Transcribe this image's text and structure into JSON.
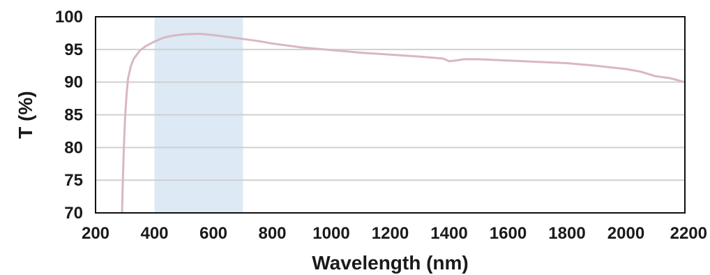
{
  "chart_data": {
    "type": "line",
    "xlabel": "Wavelength (nm)",
    "ylabel": "T (%)",
    "xlim": [
      200,
      2200
    ],
    "ylim": [
      70,
      100
    ],
    "x_ticks": [
      200,
      400,
      600,
      800,
      1000,
      1200,
      1400,
      1600,
      1800,
      2000,
      2200
    ],
    "y_ticks": [
      70,
      75,
      80,
      85,
      90,
      95,
      100
    ],
    "grid": "horizontal",
    "highlight_band": {
      "x_range": [
        400,
        700
      ],
      "color": "#dde9f5"
    },
    "colors": {
      "line": "#d8b7c1",
      "grid": "#d0d0d0",
      "frame": "#111111"
    },
    "series": [
      {
        "x": [
          290,
          292,
          296,
          300,
          305,
          310,
          320,
          330,
          340,
          350,
          370,
          400,
          430,
          460,
          500,
          550,
          600,
          650,
          700,
          750,
          800,
          850,
          900,
          1000,
          1100,
          1200,
          1300,
          1380,
          1400,
          1420,
          1450,
          1500,
          1600,
          1700,
          1800,
          1900,
          2000,
          2050,
          2100,
          2150,
          2200
        ],
        "y": [
          70.0,
          74.0,
          80.0,
          84.5,
          88.0,
          90.5,
          92.5,
          93.6,
          94.2,
          94.8,
          95.5,
          96.2,
          96.8,
          97.1,
          97.3,
          97.4,
          97.2,
          96.9,
          96.6,
          96.3,
          95.9,
          95.6,
          95.3,
          94.9,
          94.5,
          94.2,
          93.9,
          93.6,
          93.2,
          93.3,
          93.5,
          93.5,
          93.3,
          93.1,
          92.9,
          92.5,
          92.0,
          91.6,
          90.9,
          90.6,
          90.0
        ]
      }
    ]
  }
}
